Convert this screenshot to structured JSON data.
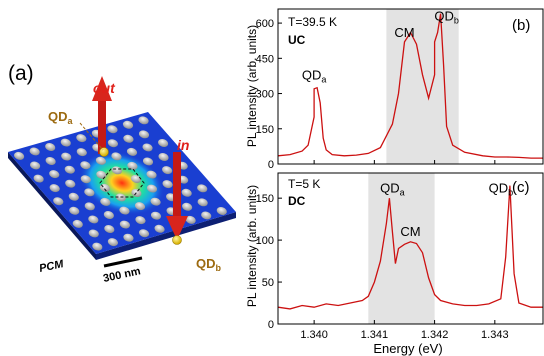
{
  "panel_a": {
    "label": "(a)",
    "out_label": "out",
    "in_label": "in",
    "qd_a": "QD",
    "qd_a_sub": "a",
    "qd_b": "QD",
    "qd_b_sub": "b",
    "pcm_label": "PCM",
    "scale_label": "300 nm",
    "colors": {
      "slab": "#1a3fd1",
      "slab_side": "#0d1f73",
      "arrow": "#cc1f1a",
      "label_gold": "#a06a12"
    }
  },
  "chart_data": [
    {
      "type": "line",
      "panel_label": "(b)",
      "condition": "T=39.5 K",
      "mode": "UC",
      "ylabel": "PL intensity (arb. units)",
      "xlim": [
        1.3394,
        1.3438
      ],
      "ylim": [
        0,
        660
      ],
      "yticks": [
        0,
        150,
        300,
        450,
        600
      ],
      "shaded_region": [
        1.3412,
        1.3424
      ],
      "annotations": [
        {
          "text": "QD",
          "sub": "a",
          "x": 1.34,
          "y": 360
        },
        {
          "text": "CM",
          "x": 1.3415,
          "y": 540
        },
        {
          "text": "QD",
          "sub": "b",
          "x": 1.3422,
          "y": 612
        }
      ],
      "color": "#cc1111",
      "x": [
        1.3394,
        1.3396,
        1.3398,
        1.3399,
        1.34,
        1.34,
        1.34005,
        1.3401,
        1.34015,
        1.3402,
        1.3403,
        1.3405,
        1.3407,
        1.3409,
        1.3411,
        1.3413,
        1.3414,
        1.3415,
        1.3416,
        1.3417,
        1.3418,
        1.3419,
        1.342,
        1.342,
        1.34205,
        1.3421,
        1.34215,
        1.3422,
        1.3423,
        1.3425,
        1.3428,
        1.343,
        1.3432,
        1.3434,
        1.3436,
        1.3438
      ],
      "y": [
        35,
        40,
        55,
        80,
        200,
        320,
        325,
        260,
        110,
        60,
        40,
        35,
        38,
        45,
        70,
        170,
        300,
        520,
        560,
        510,
        380,
        280,
        380,
        520,
        560,
        640,
        420,
        160,
        80,
        50,
        35,
        30,
        30,
        28,
        25,
        25
      ]
    },
    {
      "type": "line",
      "panel_label": "(c)",
      "condition": "T=5 K",
      "mode": "DC",
      "ylabel": "PL intensity (arb. units)",
      "xlabel": "Energy (eV)",
      "xlim": [
        1.3394,
        1.3438
      ],
      "ylim": [
        0,
        180
      ],
      "yticks": [
        0,
        50,
        100,
        150
      ],
      "xticks": [
        1.34,
        1.341,
        1.342,
        1.343
      ],
      "shaded_region": [
        1.3409,
        1.342
      ],
      "annotations": [
        {
          "text": "QD",
          "sub": "a",
          "x": 1.3413,
          "y": 157
        },
        {
          "text": "CM",
          "x": 1.3416,
          "y": 105
        },
        {
          "text": "QD",
          "sub": "b",
          "x": 1.3431,
          "y": 157
        }
      ],
      "color": "#cc1111",
      "x": [
        1.3394,
        1.3396,
        1.3398,
        1.34,
        1.3402,
        1.3404,
        1.3406,
        1.3408,
        1.3409,
        1.341,
        1.3411,
        1.3412,
        1.34125,
        1.3413,
        1.34135,
        1.3414,
        1.3415,
        1.3416,
        1.3417,
        1.3418,
        1.3419,
        1.342,
        1.3421,
        1.3423,
        1.3425,
        1.3427,
        1.3429,
        1.3431,
        1.34318,
        1.34325,
        1.34332,
        1.3434,
        1.3436,
        1.3438
      ],
      "y": [
        20,
        18,
        22,
        20,
        24,
        22,
        25,
        28,
        33,
        50,
        75,
        120,
        150,
        110,
        72,
        90,
        95,
        98,
        96,
        85,
        55,
        35,
        28,
        24,
        22,
        22,
        24,
        30,
        80,
        165,
        60,
        25,
        20,
        20
      ]
    }
  ]
}
